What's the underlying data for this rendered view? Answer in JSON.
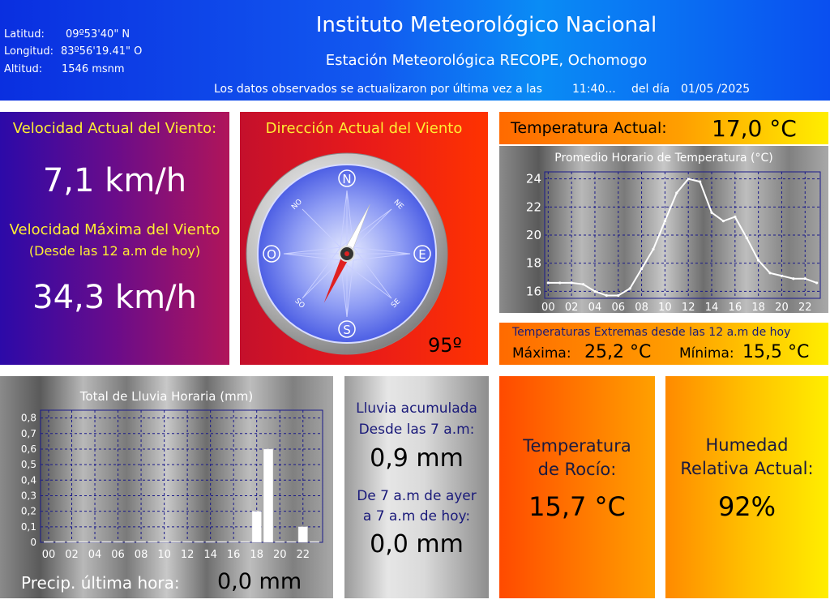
{
  "header": {
    "latitude_label": "Latitud:",
    "latitude_value": "09º53'40\" N",
    "longitude_label": "Longitud:",
    "longitude_value": "83º56'19.41\" O",
    "altitude_label": "Altitud:",
    "altitude_value": "1546 msnm",
    "title": "Instituto Meteorológico Nacional",
    "station": "Estación Meteorológica RECOPE, Ochomogo",
    "update_prefix": "Los datos observados se actualizaron por última vez a las",
    "update_time": "11:40...",
    "update_day_label": "del día",
    "update_date": "01/05 /2025"
  },
  "wind": {
    "current_label": "Velocidad Actual del Viento:",
    "current_value": "7,1 km/h",
    "max_label": "Velocidad Máxima del Viento",
    "max_sub": "(Desde las 12 a.m de hoy)",
    "max_value": "34,3 km/h"
  },
  "direction": {
    "label": "Dirección Actual del Viento",
    "degrees_text": "95º",
    "degrees": 95,
    "cardinal": {
      "n": "N",
      "s": "S",
      "e": "E",
      "o": "O",
      "no": "NO",
      "ne": "NE",
      "so": "SO",
      "se": "SE"
    }
  },
  "temperature": {
    "current_label": "Temperatura Actual:",
    "current_value": "17,0 °C",
    "chart_title": "Promedio Horario de Temperatura (°C)",
    "extremes_label": "Temperaturas Extremas desde las 12 a.m de hoy",
    "max_label": "Máxima:",
    "max_value": "25,2 °C",
    "min_label": "Mínima:",
    "min_value": "15,5 °C"
  },
  "rain_chart": {
    "title": "Total de Lluvia Horaria (mm)",
    "last_hour_label": "Precip. última hora:",
    "last_hour_value": "0,0 mm"
  },
  "rain_acc": {
    "since7_label1": "Lluvia acumulada",
    "since7_label2": "Desde las 7 a.m:",
    "since7_value": "0,9 mm",
    "yesterday_label1": "De 7 a.m de ayer",
    "yesterday_label2": "a 7 a.m de hoy:",
    "yesterday_value": "0,0 mm"
  },
  "dew": {
    "label1": "Temperatura",
    "label2": "de Rocío:",
    "value": "15,7 °C"
  },
  "humidity": {
    "label1": "Humedad",
    "label2": "Relativa Actual:",
    "value": "92%"
  },
  "colors": {
    "header": "#1259f0",
    "title_yellow": "#ffee33",
    "navy": "#1a1a7a"
  },
  "chart_data": [
    {
      "type": "line",
      "title": "Promedio Horario de Temperatura (°C)",
      "x_ticks": [
        "00",
        "02",
        "04",
        "06",
        "08",
        "10",
        "12",
        "14",
        "16",
        "18",
        "20",
        "22"
      ],
      "x": [
        0,
        1,
        2,
        3,
        4,
        5,
        6,
        7,
        8,
        9,
        10,
        11,
        12,
        13,
        14,
        15,
        16,
        17,
        18,
        19,
        20,
        21,
        22,
        23
      ],
      "y": [
        16.6,
        16.6,
        16.6,
        16.5,
        16.0,
        15.7,
        15.7,
        16.2,
        17.6,
        19.0,
        21.0,
        23.0,
        24.0,
        23.8,
        21.6,
        21.0,
        21.3,
        19.8,
        18.2,
        17.3,
        17.1,
        16.9,
        16.9,
        16.6
      ],
      "ylim": [
        15.5,
        24.5
      ],
      "y_ticks": [
        16,
        18,
        20,
        22,
        24
      ],
      "grid": true
    },
    {
      "type": "bar",
      "title": "Total de Lluvia Horaria (mm)",
      "x_ticks": [
        "00",
        "02",
        "04",
        "06",
        "08",
        "10",
        "12",
        "14",
        "16",
        "18",
        "20",
        "22"
      ],
      "x": [
        0,
        1,
        2,
        3,
        4,
        5,
        6,
        7,
        8,
        9,
        10,
        11,
        12,
        13,
        14,
        15,
        16,
        17,
        18,
        19,
        20,
        21,
        22,
        23
      ],
      "values": [
        0,
        0,
        0,
        0,
        0,
        0,
        0,
        0,
        0,
        0,
        0,
        0,
        0,
        0,
        0,
        0,
        0,
        0,
        0.2,
        0.6,
        0,
        0,
        0.1,
        0
      ],
      "ylim": [
        0,
        0.85
      ],
      "y_ticks": [
        "0",
        "0,1",
        "0,2",
        "0,3",
        "0,4",
        "0,5",
        "0,6",
        "0,7",
        "0,8"
      ],
      "grid": true
    }
  ]
}
